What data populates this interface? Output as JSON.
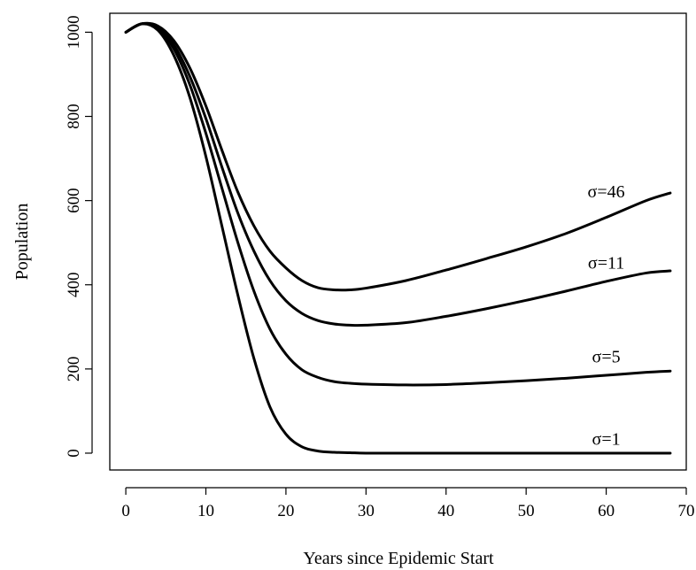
{
  "chart_data": {
    "type": "line",
    "title": "",
    "xlabel": "Years since Epidemic Start",
    "ylabel": "Population",
    "xlim": [
      -2,
      70
    ],
    "ylim": [
      -40,
      1045
    ],
    "xticks": [
      0,
      10,
      20,
      30,
      40,
      50,
      60,
      70
    ],
    "yticks": [
      0,
      200,
      400,
      600,
      800,
      1000
    ],
    "grid": false,
    "legend": "none",
    "line_color": "#000000",
    "x": [
      0,
      2,
      4,
      6,
      8,
      10,
      12,
      14,
      16,
      18,
      20,
      22,
      24,
      26,
      28,
      30,
      35,
      40,
      45,
      50,
      55,
      60,
      65,
      68
    ],
    "series": [
      {
        "name": "σ=46",
        "label_at": [
          60,
          608
        ],
        "values": [
          1000,
          1020,
          1015,
          980,
          915,
          825,
          720,
          620,
          540,
          480,
          440,
          410,
          393,
          388,
          388,
          392,
          410,
          435,
          462,
          490,
          522,
          560,
          600,
          618
        ]
      },
      {
        "name": "σ=11",
        "label_at": [
          60,
          438
        ],
        "values": [
          1000,
          1020,
          1012,
          970,
          895,
          795,
          680,
          570,
          480,
          410,
          362,
          332,
          315,
          307,
          304,
          304,
          310,
          325,
          343,
          363,
          385,
          408,
          428,
          433
        ]
      },
      {
        "name": "σ=5",
        "label_at": [
          60,
          215
        ],
        "values": [
          1000,
          1020,
          1010,
          960,
          875,
          760,
          630,
          500,
          385,
          295,
          235,
          198,
          180,
          170,
          166,
          164,
          162,
          163,
          167,
          172,
          178,
          185,
          192,
          195
        ]
      },
      {
        "name": "σ=1",
        "label_at": [
          60,
          20
        ],
        "values": [
          1000,
          1020,
          1005,
          945,
          845,
          705,
          540,
          375,
          225,
          110,
          45,
          15,
          5,
          2,
          1,
          0,
          0,
          0,
          0,
          0,
          0,
          0,
          0,
          0
        ]
      }
    ]
  }
}
